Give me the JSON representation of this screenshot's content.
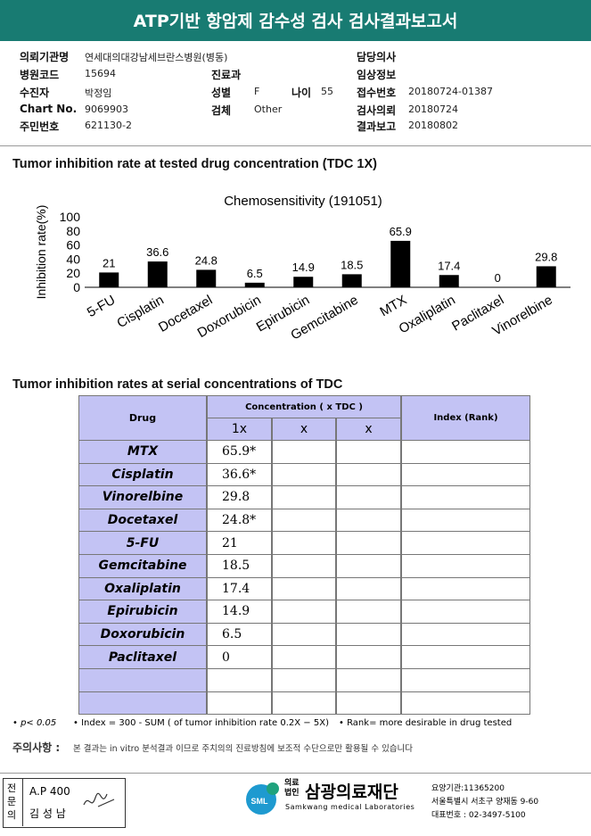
{
  "header": {
    "title": "ATP기반 항암제 감수성 검사 검사결과보고서"
  },
  "info": [
    {
      "label": "의뢰기관명",
      "value": "연세대의대강남세브란스병원(병동)"
    },
    {
      "label": "담당의사"
    },
    {
      "label": "병원코드",
      "value": "15694"
    },
    {
      "label": "진료과"
    },
    {
      "label": "임상정보"
    },
    {
      "label": "수진자",
      "value": "박정임"
    },
    {
      "label": "성별",
      "value": "F"
    },
    {
      "label": "나이",
      "value": "55"
    },
    {
      "label": "접수번호",
      "value": "20180724-01387"
    },
    {
      "label": "Chart No.",
      "value": "9069903"
    },
    {
      "label": "검체",
      "value": "Other"
    },
    {
      "label": "검사의뢰",
      "value": "20180724"
    },
    {
      "label": "주민번호",
      "value": "621130-2"
    },
    {
      "label": "결과보고",
      "value": "20180802"
    }
  ],
  "section1": {
    "title": "Tumor inhibition rate at tested drug concentration (TDC 1X)"
  },
  "chart_data": {
    "type": "bar",
    "title": "Chemosensitivity (191051)",
    "y_label": "Inhibition rate(%)",
    "categories": [
      "5-FU",
      "Cisplatin",
      "Docetaxel",
      "Doxorubicin",
      "Epirubicin",
      "Gemcitabine",
      "MTX",
      "Oxaliplatin",
      "Paclitaxel",
      "Vinorelbine"
    ],
    "values": [
      21,
      36.6,
      24.8,
      6.5,
      14.9,
      18.5,
      65.9,
      17.4,
      0,
      29.8
    ],
    "color": "#000000",
    "ylim": [
      0,
      100
    ],
    "yticks": [
      0,
      20,
      40,
      60,
      80,
      100
    ]
  },
  "section2": {
    "title": "Tumor inhibition rates at serial concentrations of TDC"
  },
  "table": {
    "header": {
      "drug": "Drug",
      "concentration": "Concentration ( x TDC )",
      "columns": [
        "1x",
        "x",
        "x"
      ],
      "index": "Index (Rank)"
    },
    "rows": [
      [
        "MTX",
        "65.9*"
      ],
      [
        "Cisplatin",
        "36.6*"
      ],
      [
        "Vinorelbine",
        "29.8"
      ],
      [
        "Docetaxel",
        "24.8*"
      ],
      [
        "5-FU",
        "21"
      ],
      [
        "Gemcitabine",
        "18.5"
      ],
      [
        "Oxaliplatin",
        "17.4"
      ],
      [
        "Epirubicin",
        "14.9"
      ],
      [
        "Doxorubicin",
        "6.5"
      ],
      [
        "Paclitaxel",
        "0"
      ]
    ]
  },
  "footnotes": [
    "p< 0.05",
    "Index = 300 - SUM ( of tumor inhibition rate 0.2X − 5X)",
    "Rank= more desirable in drug tested"
  ],
  "notice": {
    "label": "주의사항 :",
    "text": "본 결과는 in vitro 분석결과 이므로 주치의의 진료방침에 보조적 수단으로만 활용될 수 있습니다"
  },
  "footer": {
    "role": "전문의",
    "license": "A.P 400",
    "doctor": "김 성 남",
    "logo_mark": "SML",
    "org_type": "의료법인",
    "org_name": "삼광의료재단",
    "org_en": "Samkwang medical Laboratories",
    "code": "요양기관:11365200",
    "address": "서울특별시 서초구 양재동 9-60",
    "phone": "대표번호 : 02-3497-5100"
  }
}
